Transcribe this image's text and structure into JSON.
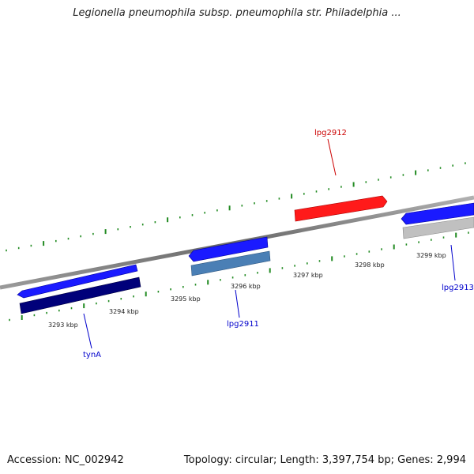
{
  "title": "Legionella pneumophila subsp. pneumophila str. Philadelphia ...",
  "footer": {
    "accession": "Accession: NC_002942",
    "summary": "Topology: circular; Length: 3,397,754 bp; Genes: 2,994"
  },
  "colors": {
    "backbone": "#888888",
    "tick": "#228b22",
    "label_red": "#cc0000",
    "label_blue": "#0000cc"
  },
  "tick_labels": [
    "3293 kbp",
    "3294 kbp",
    "3295 kbp",
    "3296 kbp",
    "3297 kbp",
    "3298 kbp",
    "3299 kbp"
  ],
  "gene_labels": [
    {
      "id": "tynA",
      "text": "tynA",
      "color": "#0000cc"
    },
    {
      "id": "lpg2911",
      "text": "lpg2911",
      "color": "#0000cc"
    },
    {
      "id": "lpg2912",
      "text": "lpg2912",
      "color": "#cc0000"
    },
    {
      "id": "lpg2913",
      "text": "lpg2913",
      "color": "#0000cc"
    }
  ],
  "genes": [
    {
      "id": "tynA-top",
      "color": "#1a1aff"
    },
    {
      "id": "tynA-bottom",
      "color": "#00007a"
    },
    {
      "id": "lpg2911-top",
      "color": "#1a1aff"
    },
    {
      "id": "lpg2911-bottom",
      "color": "#4a7fb5"
    },
    {
      "id": "lpg2912",
      "color": "#ff1a1a"
    },
    {
      "id": "lpg2913-top",
      "color": "#1a1aff"
    },
    {
      "id": "lpg2913-bottom",
      "color": "#c0c0c0"
    }
  ]
}
